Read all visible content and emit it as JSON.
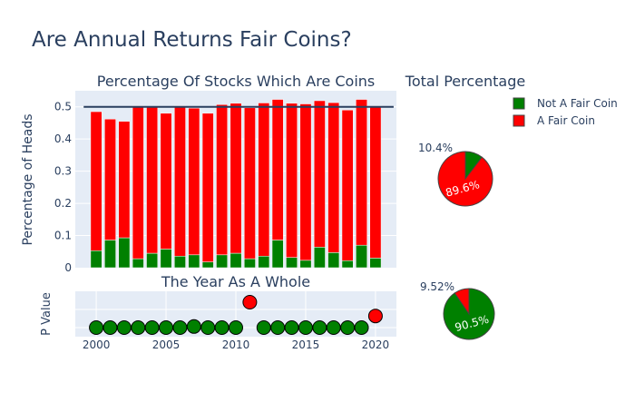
{
  "title": "Are Annual Returns Fair Coins?",
  "legend": {
    "items": [
      {
        "label": "Not A Fair Coin",
        "color": "#008000"
      },
      {
        "label": "A Fair Coin",
        "color": "#ff0000"
      }
    ],
    "placement": "top-right"
  },
  "chart_data": [
    {
      "type": "bar",
      "title": "Percentage Of Stocks Which Are Coins",
      "xlabel": "",
      "ylabel": "Percentage of Heads",
      "categories": [
        2000,
        2001,
        2002,
        2003,
        2004,
        2005,
        2006,
        2007,
        2008,
        2009,
        2010,
        2011,
        2012,
        2013,
        2014,
        2015,
        2016,
        2017,
        2018,
        2019,
        2020
      ],
      "stacked": true,
      "series": [
        {
          "name": "Not A Fair Coin",
          "color": "#008000",
          "values": [
            0.053,
            0.086,
            0.093,
            0.028,
            0.045,
            0.058,
            0.036,
            0.04,
            0.018,
            0.04,
            0.045,
            0.028,
            0.036,
            0.086,
            0.032,
            0.023,
            0.064,
            0.047,
            0.022,
            0.07,
            0.03
          ]
        },
        {
          "name": "A Fair Coin",
          "color": "#ff0000",
          "values": [
            0.432,
            0.376,
            0.362,
            0.475,
            0.454,
            0.422,
            0.467,
            0.456,
            0.462,
            0.467,
            0.466,
            0.469,
            0.476,
            0.437,
            0.479,
            0.486,
            0.455,
            0.466,
            0.468,
            0.453,
            0.473
          ]
        }
      ],
      "reference_line": {
        "y": 0.5,
        "color": "#2a3f5f"
      },
      "ylim": [
        0,
        0.55
      ],
      "yticks": [
        0,
        0.1,
        0.2,
        0.3,
        0.4,
        0.5
      ],
      "ytick_labels": [
        "0",
        "0.1",
        "0.2",
        "0.3",
        "0.4",
        "0.5"
      ]
    },
    {
      "type": "scatter",
      "title": "The Year As A Whole",
      "xlabel": "",
      "ylabel": "P Value",
      "x": [
        2000,
        2001,
        2002,
        2003,
        2004,
        2005,
        2006,
        2007,
        2008,
        2009,
        2010,
        2011,
        2012,
        2013,
        2014,
        2015,
        2016,
        2017,
        2018,
        2019,
        2020
      ],
      "y": [
        0.0,
        0.0,
        0.0,
        0.0,
        0.0,
        0.0,
        0.0,
        0.03,
        0.0,
        0.0,
        0.0,
        0.7,
        0.0,
        0.0,
        0.0,
        0.0,
        0.0,
        0.0,
        0.0,
        0.0,
        0.32
      ],
      "colors": [
        "#008000",
        "#008000",
        "#008000",
        "#008000",
        "#008000",
        "#008000",
        "#008000",
        "#008000",
        "#008000",
        "#008000",
        "#008000",
        "#ff0000",
        "#008000",
        "#008000",
        "#008000",
        "#008000",
        "#008000",
        "#008000",
        "#008000",
        "#008000",
        "#ff0000"
      ],
      "xlim": [
        1998.5,
        2021.5
      ],
      "ylim": [
        -0.25,
        1.0
      ],
      "xticks": [
        2000,
        2005,
        2010,
        2015,
        2020
      ],
      "xtick_labels": [
        "2000",
        "2005",
        "2010",
        "2015",
        "2020"
      ]
    },
    {
      "type": "pie",
      "title": "Total Percentage",
      "labels": [
        "Not A Fair Coin",
        "A Fair Coin"
      ],
      "values": [
        10.4,
        89.6
      ],
      "text_labels": [
        "10.4%",
        "89.6%"
      ],
      "colors": [
        "#008000",
        "#ff0000"
      ]
    },
    {
      "type": "pie",
      "title": "",
      "labels": [
        "Not A Fair Coin",
        "A Fair Coin"
      ],
      "values": [
        90.5,
        9.52
      ],
      "text_labels": [
        "90.5%",
        "9.52%"
      ],
      "colors": [
        "#008000",
        "#ff0000"
      ]
    }
  ]
}
